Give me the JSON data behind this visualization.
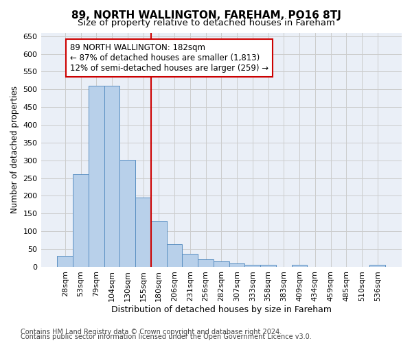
{
  "title1": "89, NORTH WALLINGTON, FAREHAM, PO16 8TJ",
  "title2": "Size of property relative to detached houses in Fareham",
  "xlabel": "Distribution of detached houses by size in Fareham",
  "ylabel": "Number of detached properties",
  "categories": [
    "28sqm",
    "53sqm",
    "79sqm",
    "104sqm",
    "130sqm",
    "155sqm",
    "180sqm",
    "206sqm",
    "231sqm",
    "256sqm",
    "282sqm",
    "307sqm",
    "333sqm",
    "358sqm",
    "383sqm",
    "409sqm",
    "434sqm",
    "459sqm",
    "485sqm",
    "510sqm",
    "536sqm"
  ],
  "values": [
    31,
    261,
    511,
    511,
    302,
    196,
    129,
    64,
    37,
    22,
    15,
    9,
    5,
    5,
    0,
    5,
    0,
    0,
    0,
    0,
    5
  ],
  "bar_color": "#b8d0ea",
  "bar_edge_color": "#5a8fc2",
  "vline_index": 6,
  "vline_color": "#cc0000",
  "annotation_line1": "89 NORTH WALLINGTON: 182sqm",
  "annotation_line2": "← 87% of detached houses are smaller (1,813)",
  "annotation_line3": "12% of semi-detached houses are larger (259) →",
  "annotation_box_color": "#cc0000",
  "ylim": [
    0,
    660
  ],
  "yticks": [
    0,
    50,
    100,
    150,
    200,
    250,
    300,
    350,
    400,
    450,
    500,
    550,
    600,
    650
  ],
  "grid_color": "#cccccc",
  "bg_color": "#eaeff7",
  "footer1": "Contains HM Land Registry data © Crown copyright and database right 2024.",
  "footer2": "Contains public sector information licensed under the Open Government Licence v3.0.",
  "title1_fontsize": 11,
  "title2_fontsize": 9.5,
  "xlabel_fontsize": 9,
  "ylabel_fontsize": 8.5,
  "tick_fontsize": 8,
  "annotation_fontsize": 8.5,
  "footer_fontsize": 7
}
